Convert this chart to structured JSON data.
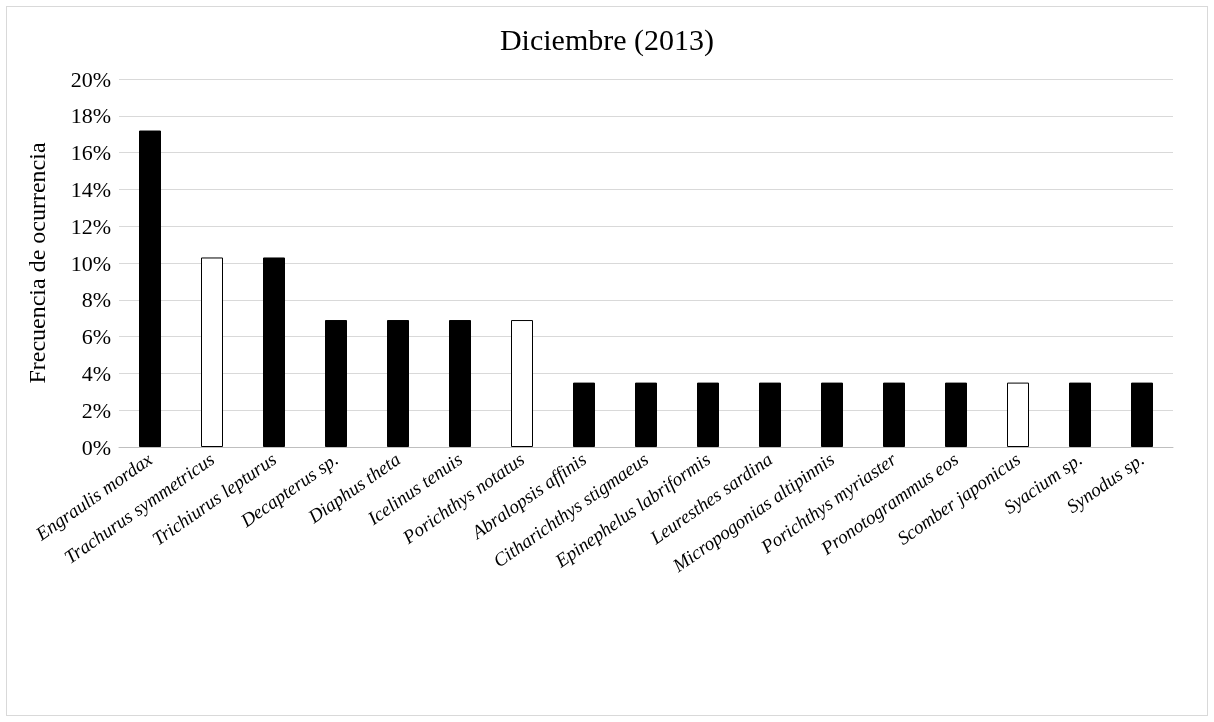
{
  "chart_data": {
    "type": "bar",
    "title": "Diciembre (2013)",
    "ylabel": "Frecuencia de ocurrencia",
    "categories": [
      "Engraulis mordax",
      "Trachurus symmetricus",
      "Trichiurus lepturus",
      "Decapterus sp.",
      "Diaphus theta",
      "Icelinus tenuis",
      "Porichthys notatus",
      "Abralopsis affinis",
      "Citharichthys stigmaeus",
      "Epinephelus labriformis",
      "Leuresthes sardina",
      "Micropogonias altipinnis",
      "Porichthys myriaster",
      "Pronotogrammus eos",
      "Scomber japonicus",
      "Syacium sp.",
      "Synodus sp."
    ],
    "values": [
      17.2,
      10.3,
      10.3,
      6.9,
      6.9,
      6.9,
      6.9,
      3.5,
      3.5,
      3.5,
      3.5,
      3.5,
      3.5,
      3.5,
      3.5,
      3.5,
      3.5
    ],
    "colors": [
      "#000000",
      "#ffffff",
      "#000000",
      "#000000",
      "#000000",
      "#000000",
      "#ffffff",
      "#000000",
      "#000000",
      "#000000",
      "#000000",
      "#000000",
      "#000000",
      "#000000",
      "#ffffff",
      "#000000",
      "#000000"
    ],
    "ylim": [
      0,
      20
    ],
    "yticks": [
      {
        "value": 0,
        "label": "0%"
      },
      {
        "value": 2,
        "label": "2%"
      },
      {
        "value": 4,
        "label": "4%"
      },
      {
        "value": 6,
        "label": "6%"
      },
      {
        "value": 8,
        "label": "8%"
      },
      {
        "value": 10,
        "label": "10%"
      },
      {
        "value": 12,
        "label": "12%"
      },
      {
        "value": 14,
        "label": "14%"
      },
      {
        "value": 16,
        "label": "16%"
      },
      {
        "value": 18,
        "label": "18%"
      },
      {
        "value": 20,
        "label": "20%"
      }
    ],
    "grid": "y"
  }
}
